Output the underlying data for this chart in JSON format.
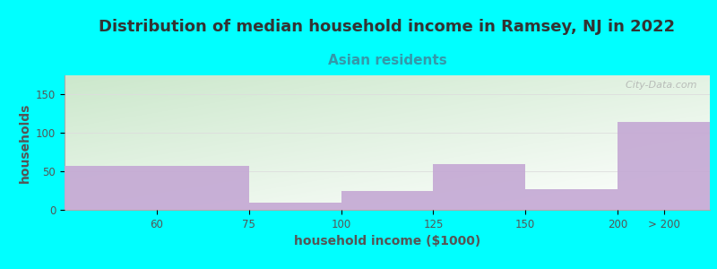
{
  "title": "Distribution of median household income in Ramsey, NJ in 2022",
  "subtitle": "Asian residents",
  "xlabel": "household income ($1000)",
  "ylabel": "households",
  "background_color": "#00FFFF",
  "plot_bg_top_left": "#cce8cc",
  "plot_bg_bottom_right": "#ffffff",
  "bar_color": "#c4a8d4",
  "x_labels": [
    "60",
    "75",
    "100",
    "125",
    "150",
    "200",
    "> 200"
  ],
  "bar_lefts": [
    0,
    2,
    3,
    4,
    5,
    6
  ],
  "bar_widths": [
    2,
    1,
    1,
    1,
    1,
    1
  ],
  "values": [
    57,
    9,
    24,
    60,
    27,
    114
  ],
  "xlim": [
    0,
    7
  ],
  "ylim": [
    0,
    175
  ],
  "yticks": [
    0,
    50,
    100,
    150
  ],
  "title_fontsize": 13,
  "subtitle_fontsize": 11,
  "label_fontsize": 10,
  "tick_fontsize": 8.5,
  "watermark": "  City-Data.com"
}
